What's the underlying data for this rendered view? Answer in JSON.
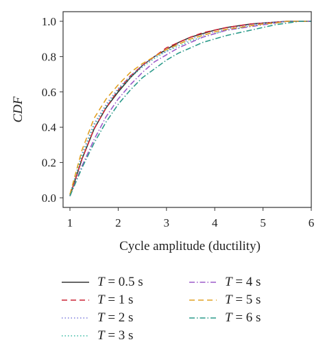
{
  "chart_data": {
    "type": "line",
    "xlabel": "Cycle amplitude (ductility)",
    "ylabel": "CDF",
    "xlim": [
      1,
      6
    ],
    "ylim": [
      0,
      1
    ],
    "x_ticks": [
      "1",
      "2",
      "3",
      "4",
      "5",
      "6"
    ],
    "y_ticks": [
      "0.0",
      "0.2",
      "0.4",
      "0.6",
      "0.8",
      "1.0"
    ],
    "grid": false,
    "legend_position": "below",
    "x": [
      1.0,
      1.25,
      1.5,
      1.75,
      2.0,
      2.25,
      2.5,
      2.75,
      3.0,
      3.25,
      3.5,
      3.75,
      4.0,
      4.25,
      4.5,
      4.75,
      5.0,
      5.25,
      5.5,
      5.75,
      6.0
    ],
    "series": [
      {
        "name": "T = 0.5 s",
        "color": "#333333",
        "dash": "solid",
        "values": [
          0.01,
          0.22,
          0.39,
          0.51,
          0.6,
          0.68,
          0.75,
          0.8,
          0.84,
          0.88,
          0.91,
          0.93,
          0.95,
          0.965,
          0.975,
          0.985,
          0.99,
          0.995,
          1.0,
          1.0,
          1.0
        ]
      },
      {
        "name": "T = 1 s",
        "color": "#cc2233",
        "dash": "dash",
        "values": [
          0.01,
          0.22,
          0.39,
          0.51,
          0.61,
          0.69,
          0.75,
          0.8,
          0.85,
          0.88,
          0.91,
          0.935,
          0.95,
          0.965,
          0.975,
          0.985,
          0.99,
          0.995,
          1.0,
          1.0,
          1.0
        ]
      },
      {
        "name": "T = 2 s",
        "color": "#7a7adc",
        "dash": "dot",
        "values": [
          0.02,
          0.25,
          0.42,
          0.53,
          0.62,
          0.69,
          0.75,
          0.8,
          0.83,
          0.87,
          0.9,
          0.92,
          0.94,
          0.955,
          0.97,
          0.98,
          0.99,
          0.995,
          1.0,
          1.0,
          1.0
        ]
      },
      {
        "name": "T = 3 s",
        "color": "#33b8a0",
        "dash": "dot",
        "values": [
          0.02,
          0.24,
          0.41,
          0.52,
          0.61,
          0.68,
          0.74,
          0.79,
          0.83,
          0.86,
          0.89,
          0.91,
          0.93,
          0.95,
          0.96,
          0.975,
          0.985,
          0.99,
          1.0,
          1.0,
          1.0
        ]
      },
      {
        "name": "T = 4 s",
        "color": "#9b59c9",
        "dash": "dashdot",
        "values": [
          0.01,
          0.18,
          0.33,
          0.46,
          0.56,
          0.64,
          0.71,
          0.77,
          0.81,
          0.85,
          0.88,
          0.91,
          0.93,
          0.95,
          0.96,
          0.97,
          0.98,
          0.99,
          1.0,
          1.0,
          1.0
        ]
      },
      {
        "name": "T = 5 s",
        "color": "#e0a020",
        "dash": "dash",
        "values": [
          0.02,
          0.27,
          0.45,
          0.56,
          0.64,
          0.71,
          0.76,
          0.8,
          0.84,
          0.87,
          0.9,
          0.92,
          0.94,
          0.955,
          0.965,
          0.975,
          0.985,
          0.99,
          1.0,
          1.0,
          1.0
        ]
      },
      {
        "name": "T = 6 s",
        "color": "#2a9a8a",
        "dash": "dashdot",
        "values": [
          0.01,
          0.17,
          0.31,
          0.43,
          0.53,
          0.61,
          0.68,
          0.73,
          0.78,
          0.82,
          0.85,
          0.88,
          0.9,
          0.92,
          0.935,
          0.95,
          0.965,
          0.98,
          0.99,
          1.0,
          1.0
        ]
      }
    ]
  }
}
